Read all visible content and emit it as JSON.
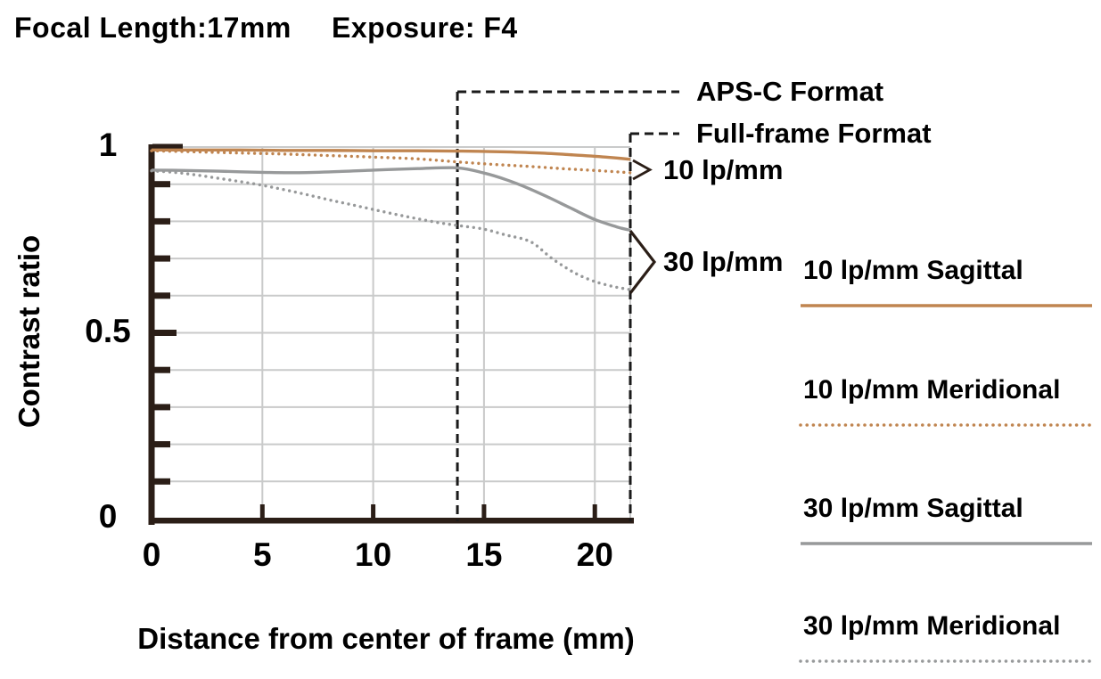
{
  "header": {
    "focal_length": "Focal Length:17mm",
    "exposure": "Exposure: F4"
  },
  "colors": {
    "axis": "#2b1e17",
    "grid": "#c9caca",
    "dashed": "#1a1a1a",
    "text": "#000000",
    "background": "#ffffff",
    "orange": "#c08550",
    "gray": "#97999a"
  },
  "chart_data": {
    "type": "line",
    "title": "Focal Length:17mm  Exposure: F4",
    "xlabel": "Distance from center of frame (mm)",
    "ylabel": "Contrast ratio",
    "xlim": [
      0,
      21.6
    ],
    "ylim": [
      0,
      1
    ],
    "x_tick_values": [
      0,
      5,
      10,
      15,
      20
    ],
    "x_tick_labels": [
      "0",
      "5",
      "10",
      "15",
      "20"
    ],
    "y_tick_values": [
      0,
      0.5,
      1
    ],
    "y_tick_labels": [
      "0",
      "0.5",
      "1"
    ],
    "y_grid_step": 0.1,
    "x_gridlines": [
      5,
      10,
      15,
      20
    ],
    "grid": true,
    "legend_position": "right",
    "series": [
      {
        "name": "10 lp/mm Sagittal",
        "style": "solid",
        "color": "#c08550",
        "points": [
          [
            0,
            0.992
          ],
          [
            2,
            0.992
          ],
          [
            4,
            0.992
          ],
          [
            6,
            0.991
          ],
          [
            8,
            0.991
          ],
          [
            10,
            0.99
          ],
          [
            12,
            0.99
          ],
          [
            14,
            0.989
          ],
          [
            16,
            0.987
          ],
          [
            17.5,
            0.984
          ],
          [
            19,
            0.979
          ],
          [
            20.5,
            0.973
          ],
          [
            21.6,
            0.967
          ]
        ]
      },
      {
        "name": "10 lp/mm Meridional",
        "style": "dotted",
        "color": "#c08550",
        "points": [
          [
            0,
            0.99
          ],
          [
            2,
            0.987
          ],
          [
            4,
            0.984
          ],
          [
            6,
            0.981
          ],
          [
            8,
            0.977
          ],
          [
            10,
            0.973
          ],
          [
            12,
            0.968
          ],
          [
            13.8,
            0.96
          ],
          [
            15.5,
            0.953
          ],
          [
            17,
            0.948
          ],
          [
            18.5,
            0.942
          ],
          [
            20,
            0.937
          ],
          [
            21.6,
            0.931
          ]
        ]
      },
      {
        "name": "30 lp/mm Sagittal",
        "style": "solid",
        "color": "#97999a",
        "points": [
          [
            0,
            0.938
          ],
          [
            1.5,
            0.937
          ],
          [
            3,
            0.935
          ],
          [
            5,
            0.932
          ],
          [
            6.5,
            0.931
          ],
          [
            8,
            0.933
          ],
          [
            10,
            0.938
          ],
          [
            12,
            0.942
          ],
          [
            13.8,
            0.944
          ],
          [
            15,
            0.93
          ],
          [
            16,
            0.912
          ],
          [
            17,
            0.889
          ],
          [
            18,
            0.862
          ],
          [
            19,
            0.833
          ],
          [
            20,
            0.805
          ],
          [
            21,
            0.785
          ],
          [
            21.6,
            0.776
          ]
        ]
      },
      {
        "name": "30 lp/mm Meridional",
        "style": "dotted",
        "color": "#97999a",
        "points": [
          [
            0,
            0.936
          ],
          [
            1,
            0.932
          ],
          [
            2,
            0.925
          ],
          [
            3,
            0.916
          ],
          [
            4,
            0.907
          ],
          [
            5,
            0.897
          ],
          [
            6,
            0.885
          ],
          [
            7,
            0.872
          ],
          [
            8,
            0.858
          ],
          [
            9,
            0.845
          ],
          [
            10,
            0.832
          ],
          [
            11,
            0.819
          ],
          [
            12,
            0.807
          ],
          [
            13,
            0.796
          ],
          [
            13.8,
            0.789
          ],
          [
            15,
            0.779
          ],
          [
            16,
            0.763
          ],
          [
            16.8,
            0.752
          ],
          [
            17.3,
            0.738
          ],
          [
            18,
            0.703
          ],
          [
            18.7,
            0.675
          ],
          [
            19.3,
            0.655
          ],
          [
            20,
            0.638
          ],
          [
            20.8,
            0.625
          ],
          [
            21.6,
            0.616
          ]
        ]
      }
    ],
    "annotations": {
      "aps_c": {
        "label": "APS-C Format",
        "x": 13.8
      },
      "full_frame": {
        "label": "Full-frame Format",
        "x": 21.6
      },
      "group_10lpmm": {
        "label": "10 lp/mm"
      },
      "group_30lpmm": {
        "label": "30 lp/mm"
      }
    },
    "legend": {
      "items": [
        {
          "label": "10 lp/mm Sagittal",
          "style": "solid",
          "color": "#c08550"
        },
        {
          "label": "10 lp/mm Meridional",
          "style": "dotted",
          "color": "#c08550"
        },
        {
          "label": "30 lp/mm Sagittal",
          "style": "solid",
          "color": "#97999a"
        },
        {
          "label": "30 lp/mm Meridional",
          "style": "dotted",
          "color": "#97999a"
        }
      ]
    }
  }
}
